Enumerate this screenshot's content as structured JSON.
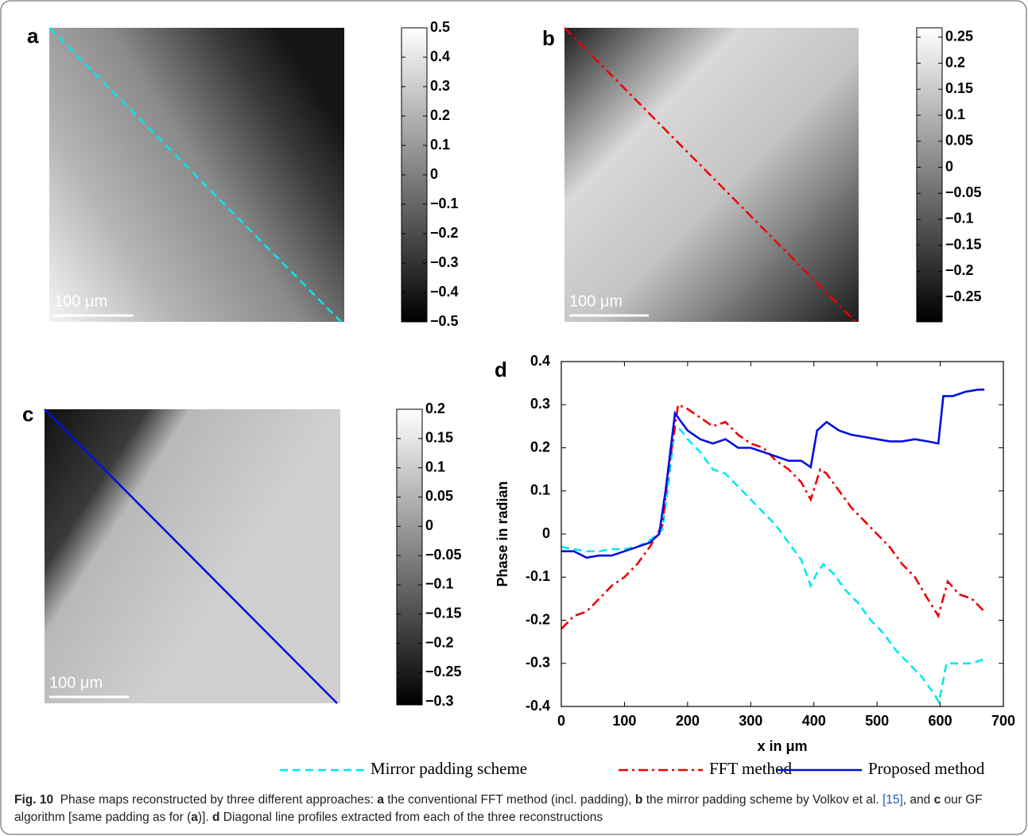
{
  "panels": [
    {
      "label": "a",
      "scale_bar": "100 μm",
      "colorbar": {
        "lim": [
          -0.5,
          0.5
        ],
        "ticks": [
          0.5,
          0.4,
          0.3,
          0.2,
          0.1,
          0,
          {
            "value": -0.1,
            "label": "−0.1"
          },
          {
            "value": -0.2,
            "label": "−0.2"
          },
          {
            "value": -0.3,
            "label": "−0.3"
          },
          {
            "value": -0.4,
            "label": "−0.4"
          },
          {
            "value": -0.5,
            "label": "−0.5"
          }
        ]
      }
    },
    {
      "label": "b",
      "scale_bar": "100 μm",
      "colorbar": {
        "lim": [
          -0.297,
          0.268
        ],
        "ticks": [
          0.25,
          0.2,
          0.15,
          0.1,
          0.05,
          0,
          {
            "value": -0.05,
            "label": "−0.05"
          },
          {
            "value": -0.1,
            "label": "−0.1"
          },
          {
            "value": -0.15,
            "label": "−0.15"
          },
          {
            "value": -0.2,
            "label": "−0.2"
          },
          {
            "value": -0.25,
            "label": "−0.25"
          }
        ]
      }
    },
    {
      "label": "c",
      "scale_bar": "100 μm",
      "colorbar": {
        "lim": [
          -0.305,
          0.2
        ],
        "ticks": [
          0.2,
          0.15,
          0.1,
          0.05,
          0,
          {
            "value": -0.05,
            "label": "−0.05"
          },
          {
            "value": -0.1,
            "label": "−0.1"
          },
          {
            "value": -0.15,
            "label": "−0.15"
          },
          {
            "value": -0.2,
            "label": "−0.2"
          },
          {
            "value": -0.25,
            "label": "−0.25"
          },
          {
            "value": -0.3,
            "label": "−0.3"
          }
        ]
      }
    }
  ],
  "chart_data": {
    "type": "line",
    "panel_label": "d",
    "x_label": "x in μm",
    "y_label": "Phase in radian",
    "xlim": [
      0,
      700
    ],
    "ylim": [
      -0.4,
      0.4
    ],
    "xticks": [
      0,
      100,
      200,
      300,
      400,
      500,
      600,
      700
    ],
    "yticks": [
      -0.4,
      -0.3,
      -0.2,
      -0.1,
      0,
      0.1,
      0.2,
      0.3,
      0.4
    ],
    "legend": "bottom",
    "series": [
      {
        "name": "Mirror padding scheme",
        "color": "#00e8f0",
        "line_style": "dashed",
        "x": [
          0,
          20,
          40,
          60,
          80,
          100,
          120,
          140,
          160,
          170,
          180,
          190,
          200,
          220,
          240,
          260,
          280,
          300,
          320,
          340,
          360,
          380,
          395,
          405,
          415,
          430,
          450,
          470,
          490,
          510,
          530,
          550,
          570,
          590,
          598,
          610,
          630,
          650,
          670
        ],
        "values": [
          -0.03,
          -0.035,
          -0.04,
          -0.04,
          -0.035,
          -0.035,
          -0.03,
          -0.015,
          0.01,
          0.12,
          0.25,
          0.24,
          0.22,
          0.19,
          0.15,
          0.14,
          0.11,
          0.08,
          0.05,
          0.02,
          -0.02,
          -0.06,
          -0.12,
          -0.09,
          -0.07,
          -0.09,
          -0.13,
          -0.16,
          -0.2,
          -0.23,
          -0.27,
          -0.3,
          -0.33,
          -0.37,
          -0.39,
          -0.3,
          -0.3,
          -0.3,
          -0.29
        ]
      },
      {
        "name": "FFT method",
        "color": "#ee0000",
        "line_style": "dashdot",
        "x": [
          0,
          20,
          40,
          60,
          80,
          100,
          120,
          140,
          160,
          170,
          185,
          200,
          220,
          240,
          260,
          280,
          300,
          320,
          340,
          360,
          380,
          395,
          410,
          420,
          440,
          460,
          480,
          500,
          520,
          540,
          560,
          580,
          597,
          612,
          630,
          650,
          670
        ],
        "values": [
          -0.22,
          -0.19,
          -0.18,
          -0.15,
          -0.12,
          -0.1,
          -0.07,
          -0.03,
          0.02,
          0.15,
          0.3,
          0.29,
          0.27,
          0.25,
          0.26,
          0.23,
          0.21,
          0.2,
          0.17,
          0.15,
          0.12,
          0.08,
          0.15,
          0.14,
          0.1,
          0.06,
          0.03,
          0,
          -0.03,
          -0.07,
          -0.1,
          -0.15,
          -0.19,
          -0.11,
          -0.14,
          -0.15,
          -0.18
        ]
      },
      {
        "name": "Proposed method",
        "color": "#0010dd",
        "line_style": "solid",
        "x": [
          0,
          20,
          40,
          60,
          80,
          100,
          120,
          140,
          155,
          165,
          180,
          190,
          200,
          220,
          240,
          260,
          280,
          300,
          320,
          340,
          360,
          380,
          395,
          405,
          420,
          440,
          460,
          480,
          500,
          520,
          540,
          560,
          580,
          597,
          605,
          620,
          640,
          660,
          670
        ],
        "values": [
          -0.04,
          -0.04,
          -0.055,
          -0.05,
          -0.05,
          -0.04,
          -0.03,
          -0.02,
          0,
          0.1,
          0.28,
          0.26,
          0.24,
          0.22,
          0.21,
          0.22,
          0.2,
          0.2,
          0.19,
          0.18,
          0.17,
          0.17,
          0.155,
          0.24,
          0.26,
          0.24,
          0.23,
          0.225,
          0.22,
          0.215,
          0.215,
          0.22,
          0.215,
          0.21,
          0.32,
          0.32,
          0.33,
          0.335,
          0.335
        ]
      }
    ]
  },
  "caption": {
    "runs": [
      {
        "text": "Fig. 10",
        "bold": true
      },
      {
        "text": "  Phase maps reconstructed by three different approaches: "
      },
      {
        "text": "a",
        "bold": true
      },
      {
        "text": " the conventional FFT method (incl. padding), "
      },
      {
        "text": "b",
        "bold": true
      },
      {
        "text": " the mirror padding scheme by Volkov et al. "
      },
      {
        "text": "[15]",
        "link": true
      },
      {
        "text": ", and "
      },
      {
        "text": "c",
        "bold": true
      },
      {
        "text": " our GF algorithm [same padding as for ("
      },
      {
        "text": "a",
        "bold": true
      },
      {
        "text": ")]. "
      },
      {
        "text": "d",
        "bold": true
      },
      {
        "text": " Diagonal line profiles extracted from each of the three reconstructions"
      }
    ]
  }
}
